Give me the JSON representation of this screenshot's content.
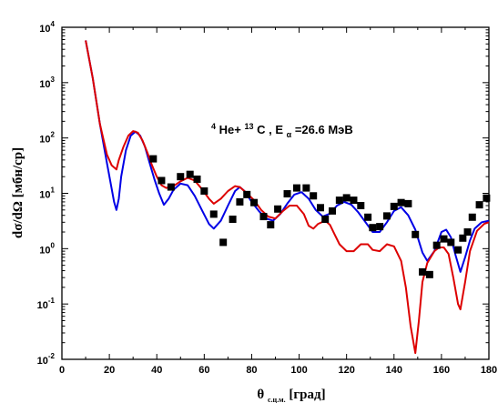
{
  "chart_data": {
    "type": "scatter",
    "title": "",
    "annotation": {
      "target": "He+",
      "target_mass": "4",
      "nucleus": "C",
      "nucleus_mass": "13",
      "energy_label": ", E",
      "energy_sub": "α",
      "energy_value": "=26.6 МэВ"
    },
    "xlabel": {
      "main": "θ",
      "sub": "c.ц.м.",
      "units": " [град]"
    },
    "ylabel": "dσ/dΩ [мбн/ср]",
    "xlim": [
      0,
      180
    ],
    "ylim": [
      0.01,
      10000
    ],
    "yscale": "log",
    "x_ticks": [
      0,
      20,
      40,
      60,
      80,
      100,
      120,
      140,
      160,
      180
    ],
    "y_ticks": [
      {
        "value": 0.01,
        "base": "10",
        "exp": "-2"
      },
      {
        "value": 0.1,
        "base": "10",
        "exp": "-1"
      },
      {
        "value": 1,
        "base": "10",
        "exp": "0"
      },
      {
        "value": 10,
        "base": "10",
        "exp": "1"
      },
      {
        "value": 100,
        "base": "10",
        "exp": "2"
      },
      {
        "value": 1000,
        "base": "10",
        "exp": "3"
      },
      {
        "value": 10000,
        "base": "10",
        "exp": "4"
      }
    ],
    "grid": false,
    "legend": "none",
    "series": [
      {
        "type": "scatter",
        "color": "#000000",
        "marker": "square",
        "points": [
          [
            38.5,
            42
          ],
          [
            42,
            17
          ],
          [
            46,
            13
          ],
          [
            50,
            20
          ],
          [
            54,
            22
          ],
          [
            57,
            18
          ],
          [
            60,
            11
          ],
          [
            64,
            4.2
          ],
          [
            68,
            1.3
          ],
          [
            72,
            3.4
          ],
          [
            75,
            7
          ],
          [
            78,
            9.5
          ],
          [
            81,
            6.8
          ],
          [
            85,
            3.8
          ],
          [
            88,
            2.7
          ],
          [
            91,
            5.2
          ],
          [
            95,
            9.8
          ],
          [
            99,
            12.5
          ],
          [
            103,
            12.5
          ],
          [
            106,
            9
          ],
          [
            109,
            5.5
          ],
          [
            111,
            3.4
          ],
          [
            114,
            4.8
          ],
          [
            117,
            7.5
          ],
          [
            120,
            8.3
          ],
          [
            123,
            7.5
          ],
          [
            126,
            6
          ],
          [
            129,
            3.7
          ],
          [
            131,
            2.4
          ],
          [
            134,
            2.5
          ],
          [
            137,
            3.9
          ],
          [
            140,
            5.8
          ],
          [
            143,
            6.8
          ],
          [
            146,
            6.5
          ],
          [
            149,
            1.8
          ],
          [
            152,
            0.38
          ],
          [
            155,
            0.34
          ],
          [
            158,
            1.15
          ],
          [
            161,
            1.5
          ],
          [
            164,
            1.3
          ],
          [
            167,
            0.95
          ],
          [
            169,
            1.55
          ],
          [
            171,
            2
          ],
          [
            173,
            3.7
          ],
          [
            176,
            6.2
          ],
          [
            179,
            8.2
          ]
        ]
      },
      {
        "type": "line",
        "color": "#0000e6",
        "points": [
          [
            10,
            5800
          ],
          [
            13,
            1200
          ],
          [
            16,
            180
          ],
          [
            19,
            35
          ],
          [
            21,
            12
          ],
          [
            22,
            7
          ],
          [
            23,
            5
          ],
          [
            24,
            8
          ],
          [
            25,
            20
          ],
          [
            27,
            60
          ],
          [
            29,
            110
          ],
          [
            31,
            130
          ],
          [
            33,
            110
          ],
          [
            35,
            70
          ],
          [
            37,
            35
          ],
          [
            39,
            18
          ],
          [
            41,
            10
          ],
          [
            43,
            6.2
          ],
          [
            45,
            8
          ],
          [
            47,
            11.5
          ],
          [
            50,
            15
          ],
          [
            53,
            14
          ],
          [
            56,
            9
          ],
          [
            59,
            5
          ],
          [
            62,
            2.8
          ],
          [
            64,
            2.3
          ],
          [
            67,
            3.2
          ],
          [
            70,
            6
          ],
          [
            73,
            11
          ],
          [
            75,
            13
          ],
          [
            77,
            11
          ],
          [
            80,
            7
          ],
          [
            83,
            4.8
          ],
          [
            86,
            3.5
          ],
          [
            89,
            3.2
          ],
          [
            92,
            4.2
          ],
          [
            95,
            6.5
          ],
          [
            98,
            9.5
          ],
          [
            101,
            10.5
          ],
          [
            104,
            8
          ],
          [
            107,
            5
          ],
          [
            110,
            3.8
          ],
          [
            113,
            4.3
          ],
          [
            116,
            6
          ],
          [
            119,
            7
          ],
          [
            122,
            6.2
          ],
          [
            125,
            4.5
          ],
          [
            128,
            3
          ],
          [
            131,
            2
          ],
          [
            134,
            2
          ],
          [
            137,
            3
          ],
          [
            140,
            4.8
          ],
          [
            143,
            5.6
          ],
          [
            146,
            4
          ],
          [
            149,
            2.2
          ],
          [
            152,
            0.85
          ],
          [
            154,
            0.6
          ],
          [
            157,
            0.9
          ],
          [
            160,
            2
          ],
          [
            162,
            2.2
          ],
          [
            164,
            1.6
          ],
          [
            166,
            0.75
          ],
          [
            168,
            0.38
          ],
          [
            170,
            0.7
          ],
          [
            172,
            1.4
          ],
          [
            174,
            2.3
          ],
          [
            177,
            3
          ],
          [
            180,
            3.2
          ]
        ]
      },
      {
        "type": "line",
        "color": "#dd0000",
        "points": [
          [
            10,
            5800
          ],
          [
            13,
            1200
          ],
          [
            16,
            180
          ],
          [
            19,
            50
          ],
          [
            21,
            32
          ],
          [
            23,
            27
          ],
          [
            24,
            40
          ],
          [
            26,
            70
          ],
          [
            28,
            110
          ],
          [
            30,
            133
          ],
          [
            32,
            125
          ],
          [
            34,
            90
          ],
          [
            36,
            55
          ],
          [
            38,
            32
          ],
          [
            40,
            20
          ],
          [
            42,
            14
          ],
          [
            44,
            12.5
          ],
          [
            47,
            13.5
          ],
          [
            50,
            16.5
          ],
          [
            53,
            19
          ],
          [
            56,
            17
          ],
          [
            59,
            12
          ],
          [
            62,
            8
          ],
          [
            64,
            6.5
          ],
          [
            67,
            8
          ],
          [
            70,
            11
          ],
          [
            73,
            13.5
          ],
          [
            75,
            13
          ],
          [
            78,
            10
          ],
          [
            81,
            7.5
          ],
          [
            84,
            5
          ],
          [
            87,
            3.8
          ],
          [
            90,
            3.5
          ],
          [
            93,
            4.7
          ],
          [
            96,
            6
          ],
          [
            99,
            6
          ],
          [
            102,
            4.2
          ],
          [
            104,
            2.6
          ],
          [
            106,
            2.3
          ],
          [
            108,
            2.8
          ],
          [
            111,
            3.2
          ],
          [
            113,
            2.7
          ],
          [
            115,
            1.8
          ],
          [
            117,
            1.2
          ],
          [
            120,
            0.9
          ],
          [
            123,
            0.9
          ],
          [
            126,
            1.2
          ],
          [
            129,
            1.2
          ],
          [
            131,
            0.95
          ],
          [
            134,
            0.9
          ],
          [
            137,
            1.2
          ],
          [
            140,
            1.1
          ],
          [
            143,
            0.6
          ],
          [
            145,
            0.2
          ],
          [
            147,
            0.04
          ],
          [
            149,
            0.013
          ],
          [
            150.5,
            0.05
          ],
          [
            152,
            0.25
          ],
          [
            154,
            0.55
          ],
          [
            157,
            0.9
          ],
          [
            159,
            1.05
          ],
          [
            161,
            1.05
          ],
          [
            163,
            0.8
          ],
          [
            165,
            0.3
          ],
          [
            167,
            0.1
          ],
          [
            168,
            0.08
          ],
          [
            170,
            0.25
          ],
          [
            172,
            0.9
          ],
          [
            175,
            2.1
          ],
          [
            178,
            2.8
          ],
          [
            180,
            3
          ]
        ]
      }
    ]
  }
}
